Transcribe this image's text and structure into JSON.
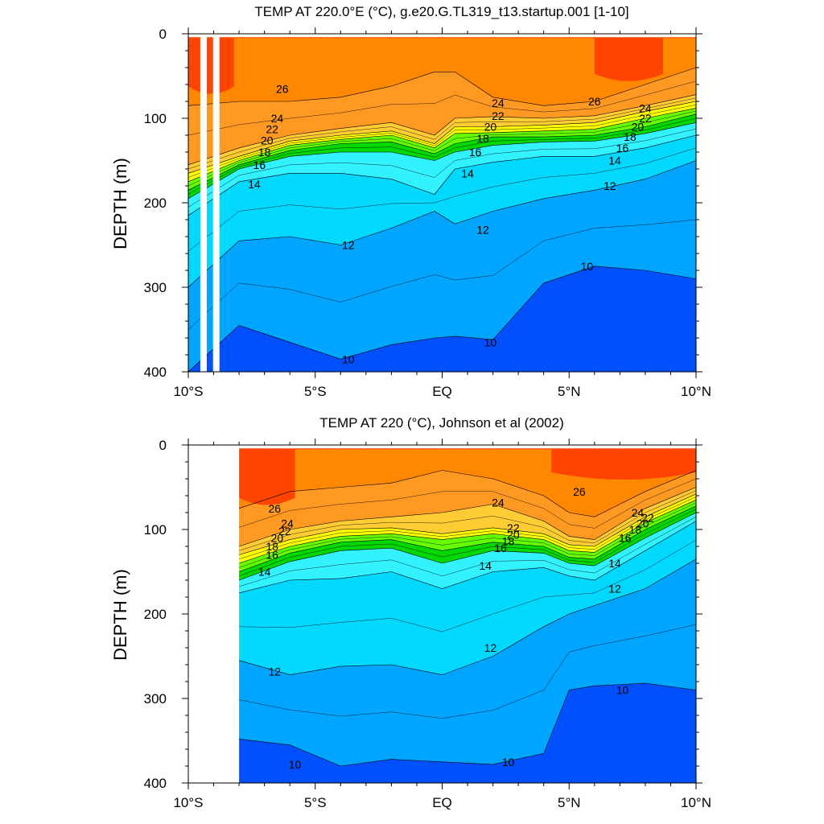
{
  "chart_data": [
    {
      "type": "heatmap",
      "title": "TEMP AT 220.0°E (°C), g.e20.G.TL319_t13.startup.001 [1-10]",
      "ylabel": "DEPTH (m)",
      "xlabel": "",
      "xlim": [
        -10,
        10
      ],
      "ylim": [
        0,
        400
      ],
      "y_inverted": true,
      "x_ticks": [
        {
          "value": -10,
          "label": "10°S"
        },
        {
          "value": -5,
          "label": "5°S"
        },
        {
          "value": 0,
          "label": "EQ"
        },
        {
          "value": 5,
          "label": "5°N"
        },
        {
          "value": 10,
          "label": "10°N"
        }
      ],
      "y_ticks": [
        {
          "value": 0,
          "label": "0"
        },
        {
          "value": 100,
          "label": "100"
        },
        {
          "value": 200,
          "label": "200"
        },
        {
          "value": 300,
          "label": "300"
        },
        {
          "value": 400,
          "label": "400"
        }
      ],
      "data_x_range": [
        -10,
        10
      ],
      "missing_columns": [
        -9.4,
        -8.9
      ],
      "isotherm_depths": {
        "x": [
          -10,
          -8,
          -6,
          -4,
          -2,
          -0.3,
          0.5,
          2,
          4,
          6,
          8,
          10
        ],
        "t10": [
          400,
          345,
          365,
          385,
          368,
          360,
          358,
          362,
          295,
          275,
          280,
          290
        ],
        "t12": [
          300,
          245,
          240,
          250,
          230,
          210,
          225,
          210,
          195,
          185,
          172,
          150
        ],
        "t14": [
          215,
          175,
          165,
          165,
          172,
          190,
          160,
          152,
          145,
          145,
          135,
          120
        ],
        "t16": [
          195,
          160,
          145,
          140,
          140,
          150,
          140,
          132,
          128,
          127,
          118,
          105
        ],
        "t18": [
          185,
          155,
          138,
          130,
          128,
          142,
          130,
          122,
          122,
          120,
          110,
          95
        ],
        "t20": [
          175,
          150,
          132,
          125,
          120,
          135,
          118,
          117,
          115,
          113,
          100,
          88
        ],
        "t22": [
          165,
          145,
          127,
          120,
          115,
          130,
          110,
          110,
          108,
          105,
          92,
          80
        ],
        "t24": [
          155,
          135,
          120,
          112,
          105,
          120,
          100,
          98,
          100,
          97,
          85,
          72
        ],
        "t26": [
          85,
          80,
          80,
          75,
          62,
          45,
          45,
          75,
          85,
          80,
          60,
          40
        ]
      },
      "contour_labels": [
        {
          "x": -6.3,
          "y": 65,
          "text": "26"
        },
        {
          "x": -6.5,
          "y": 100,
          "text": "24"
        },
        {
          "x": -6.7,
          "y": 113,
          "text": "22"
        },
        {
          "x": -6.9,
          "y": 126,
          "text": "20"
        },
        {
          "x": -7.0,
          "y": 140,
          "text": "18"
        },
        {
          "x": -7.2,
          "y": 155,
          "text": "16"
        },
        {
          "x": -7.4,
          "y": 178,
          "text": "14"
        },
        {
          "x": -3.7,
          "y": 250,
          "text": "12"
        },
        {
          "x": -3.7,
          "y": 385,
          "text": "10"
        },
        {
          "x": 2.2,
          "y": 82,
          "text": "24"
        },
        {
          "x": 2.2,
          "y": 97,
          "text": "22"
        },
        {
          "x": 1.9,
          "y": 110,
          "text": "20"
        },
        {
          "x": 1.6,
          "y": 124,
          "text": "18"
        },
        {
          "x": 1.3,
          "y": 140,
          "text": "16"
        },
        {
          "x": 1.0,
          "y": 165,
          "text": "14"
        },
        {
          "x": 1.6,
          "y": 232,
          "text": "12"
        },
        {
          "x": 1.9,
          "y": 365,
          "text": "10"
        },
        {
          "x": 6.0,
          "y": 80,
          "text": "26"
        },
        {
          "x": 8.0,
          "y": 88,
          "text": "24"
        },
        {
          "x": 8.0,
          "y": 100,
          "text": "22"
        },
        {
          "x": 7.7,
          "y": 110,
          "text": "20"
        },
        {
          "x": 7.4,
          "y": 122,
          "text": "18"
        },
        {
          "x": 7.1,
          "y": 135,
          "text": "16"
        },
        {
          "x": 6.8,
          "y": 150,
          "text": "14"
        },
        {
          "x": 6.6,
          "y": 180,
          "text": "12"
        },
        {
          "x": 5.7,
          "y": 275,
          "text": "10"
        }
      ]
    },
    {
      "type": "heatmap",
      "title": "TEMP AT 220 (°C), Johnson et al (2002)",
      "ylabel": "DEPTH (m)",
      "xlabel": "",
      "xlim": [
        -10,
        10
      ],
      "ylim": [
        0,
        400
      ],
      "y_inverted": true,
      "x_ticks": [
        {
          "value": -10,
          "label": "10°S"
        },
        {
          "value": -5,
          "label": "5°S"
        },
        {
          "value": 0,
          "label": "EQ"
        },
        {
          "value": 5,
          "label": "5°N"
        },
        {
          "value": 10,
          "label": "10°N"
        }
      ],
      "y_ticks": [
        {
          "value": 0,
          "label": "0"
        },
        {
          "value": 100,
          "label": "100"
        },
        {
          "value": 200,
          "label": "200"
        },
        {
          "value": 300,
          "label": "300"
        },
        {
          "value": 400,
          "label": "400"
        }
      ],
      "data_x_range": [
        -8,
        10
      ],
      "missing_columns": [],
      "isotherm_depths": {
        "x": [
          -8,
          -6,
          -4,
          -2,
          0,
          2,
          4,
          5,
          6,
          8,
          10
        ],
        "t10": [
          348,
          355,
          380,
          372,
          375,
          378,
          365,
          290,
          285,
          282,
          290
        ],
        "t12": [
          255,
          272,
          262,
          260,
          272,
          250,
          215,
          200,
          190,
          170,
          135
        ],
        "t14": [
          175,
          160,
          158,
          150,
          170,
          150,
          145,
          155,
          160,
          125,
          90
        ],
        "t16": [
          160,
          138,
          125,
          122,
          140,
          125,
          128,
          140,
          143,
          110,
          80
        ],
        "t18": [
          150,
          128,
          115,
          112,
          125,
          115,
          120,
          133,
          135,
          100,
          72
        ],
        "t20": [
          140,
          120,
          108,
          105,
          112,
          105,
          112,
          125,
          127,
          92,
          65
        ],
        "t22": [
          130,
          112,
          100,
          98,
          105,
          98,
          105,
          118,
          120,
          85,
          58
        ],
        "t24": [
          120,
          100,
          90,
          85,
          80,
          70,
          90,
          108,
          112,
          75,
          50
        ],
        "t26": [
          75,
          55,
          50,
          45,
          30,
          40,
          60,
          80,
          85,
          55,
          30
        ]
      },
      "contour_labels": [
        {
          "x": -6.6,
          "y": 75,
          "text": "26"
        },
        {
          "x": -6.1,
          "y": 93,
          "text": "24"
        },
        {
          "x": -6.2,
          "y": 102,
          "text": "22"
        },
        {
          "x": -6.5,
          "y": 110,
          "text": "20"
        },
        {
          "x": -6.7,
          "y": 120,
          "text": "18"
        },
        {
          "x": -6.7,
          "y": 130,
          "text": "16"
        },
        {
          "x": -7.0,
          "y": 150,
          "text": "14"
        },
        {
          "x": -6.6,
          "y": 268,
          "text": "12"
        },
        {
          "x": -5.8,
          "y": 378,
          "text": "10"
        },
        {
          "x": 2.2,
          "y": 68,
          "text": "24"
        },
        {
          "x": 2.8,
          "y": 98,
          "text": "22"
        },
        {
          "x": 2.8,
          "y": 106,
          "text": "20"
        },
        {
          "x": 2.6,
          "y": 114,
          "text": "18"
        },
        {
          "x": 2.3,
          "y": 122,
          "text": "16"
        },
        {
          "x": 1.7,
          "y": 143,
          "text": "14"
        },
        {
          "x": 1.9,
          "y": 240,
          "text": "12"
        },
        {
          "x": 2.6,
          "y": 375,
          "text": "10"
        },
        {
          "x": 5.4,
          "y": 55,
          "text": "26"
        },
        {
          "x": 7.7,
          "y": 80,
          "text": "24"
        },
        {
          "x": 8.1,
          "y": 86,
          "text": "22"
        },
        {
          "x": 7.9,
          "y": 93,
          "text": "20"
        },
        {
          "x": 7.6,
          "y": 100,
          "text": "18"
        },
        {
          "x": 7.2,
          "y": 110,
          "text": "16"
        },
        {
          "x": 6.8,
          "y": 140,
          "text": "14"
        },
        {
          "x": 6.8,
          "y": 170,
          "text": "12"
        },
        {
          "x": 7.1,
          "y": 290,
          "text": "10"
        }
      ]
    }
  ],
  "colors": {
    "below10": "#0050ff",
    "t10_12": "#00a5ff",
    "t12_14": "#00d8ff",
    "t14_16": "#33f2ff",
    "t16_18": "#00d800",
    "t18_20": "#66ff00",
    "t20_22": "#ffff00",
    "t22_24": "#ffcc33",
    "t24_26": "#ff9922",
    "t26_28": "#ff8800",
    "above28": "#ff4400"
  }
}
